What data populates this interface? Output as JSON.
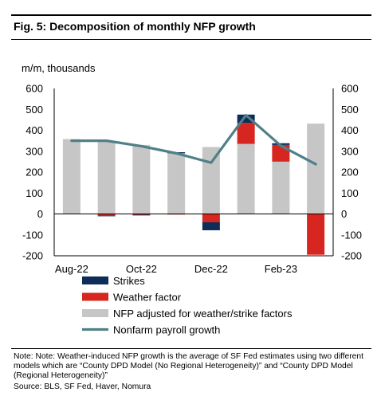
{
  "header": {
    "title": "Fig. 5: Decomposition of monthly NFP growth",
    "unit": "m/m, thousands"
  },
  "footer": {
    "note": "Note: Note: Weather-induced NFP growth is the average of SF Fed estimates using two different models which are “County DPD Model (No Regional Heterogeneity)” and “County DPD Model (Regional Heterogeneity)”",
    "source": "Source: BLS, SF Fed, Haver, Nomura"
  },
  "colors": {
    "strikes": "#0d2c57",
    "weather": "#d7251f",
    "adjusted": "#c6c6c6",
    "nfp_line": "#4f8088"
  },
  "chart_data": {
    "type": "bar",
    "stacked": true,
    "categories": [
      "Aug-22",
      "Sep-22",
      "Oct-22",
      "Nov-22",
      "Dec-22",
      "Jan-23",
      "Feb-23",
      "Mar-23"
    ],
    "x_tick_labels": [
      "Aug-22",
      "Oct-22",
      "Dec-22",
      "Feb-23"
    ],
    "ylim": [
      -200,
      600
    ],
    "yticks": [
      -200,
      -100,
      0,
      100,
      200,
      300,
      400,
      500,
      600
    ],
    "grid": false,
    "legend_position": "bottom",
    "series": [
      {
        "name": "Strikes",
        "kind": "bar",
        "values": [
          0,
          -3,
          -2,
          5,
          -38,
          40,
          8,
          0
        ]
      },
      {
        "name": "Weather factor",
        "kind": "bar",
        "values": [
          0,
          -8,
          -4,
          -2,
          -40,
          100,
          80,
          -195
        ]
      },
      {
        "name": "NFP adjusted for weather/strike factors",
        "kind": "bar",
        "values": [
          358,
          348,
          330,
          290,
          320,
          335,
          250,
          432
        ]
      },
      {
        "name": "Nonfarm payroll growth",
        "kind": "line",
        "values": [
          350,
          350,
          324,
          290,
          245,
          472,
          326,
          238
        ]
      }
    ]
  }
}
